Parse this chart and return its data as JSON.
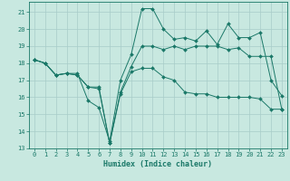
{
  "title": "",
  "xlabel": "Humidex (Indice chaleur)",
  "ylabel": "",
  "bg_color": "#c8e8e0",
  "line_color": "#1a7868",
  "grid_color": "#a8ccc8",
  "xlim": [
    -0.5,
    23.5
  ],
  "ylim": [
    13,
    21.6
  ],
  "yticks": [
    13,
    14,
    15,
    16,
    17,
    18,
    19,
    20,
    21
  ],
  "xticks": [
    0,
    1,
    2,
    3,
    4,
    5,
    6,
    7,
    8,
    9,
    10,
    11,
    12,
    13,
    14,
    15,
    16,
    17,
    18,
    19,
    20,
    21,
    22,
    23
  ],
  "series": [
    {
      "x": [
        0,
        1,
        2,
        3,
        4,
        5,
        6,
        7,
        8,
        9,
        10,
        11,
        12,
        13,
        14,
        15,
        16,
        17,
        18,
        19,
        20,
        21,
        22,
        23
      ],
      "y": [
        18.2,
        18.0,
        17.3,
        17.4,
        17.4,
        15.8,
        15.4,
        13.4,
        17.0,
        18.5,
        21.2,
        21.2,
        20.0,
        19.4,
        19.5,
        19.3,
        19.9,
        19.1,
        20.3,
        19.5,
        19.5,
        19.8,
        17.0,
        16.1
      ],
      "marker": "D",
      "markersize": 2.0
    },
    {
      "x": [
        0,
        1,
        2,
        3,
        4,
        5,
        6,
        7,
        8,
        9,
        10,
        11,
        12,
        13,
        14,
        15,
        16,
        17,
        18,
        19,
        20,
        21,
        22,
        23
      ],
      "y": [
        18.2,
        18.0,
        17.3,
        17.4,
        17.3,
        16.6,
        16.6,
        13.3,
        16.3,
        17.8,
        19.0,
        19.0,
        18.8,
        19.0,
        18.8,
        19.0,
        19.0,
        19.0,
        18.8,
        18.9,
        18.4,
        18.4,
        18.4,
        15.3
      ],
      "marker": "D",
      "markersize": 2.0
    },
    {
      "x": [
        0,
        1,
        2,
        3,
        4,
        5,
        6,
        7,
        8,
        9,
        10,
        11,
        12,
        13,
        14,
        15,
        16,
        17,
        18,
        19,
        20,
        21,
        22,
        23
      ],
      "y": [
        18.2,
        18.0,
        17.3,
        17.4,
        17.3,
        16.6,
        16.5,
        13.3,
        16.2,
        17.5,
        17.7,
        17.7,
        17.2,
        17.0,
        16.3,
        16.2,
        16.2,
        16.0,
        16.0,
        16.0,
        16.0,
        15.9,
        15.3,
        15.3
      ],
      "marker": "D",
      "markersize": 2.0
    }
  ]
}
